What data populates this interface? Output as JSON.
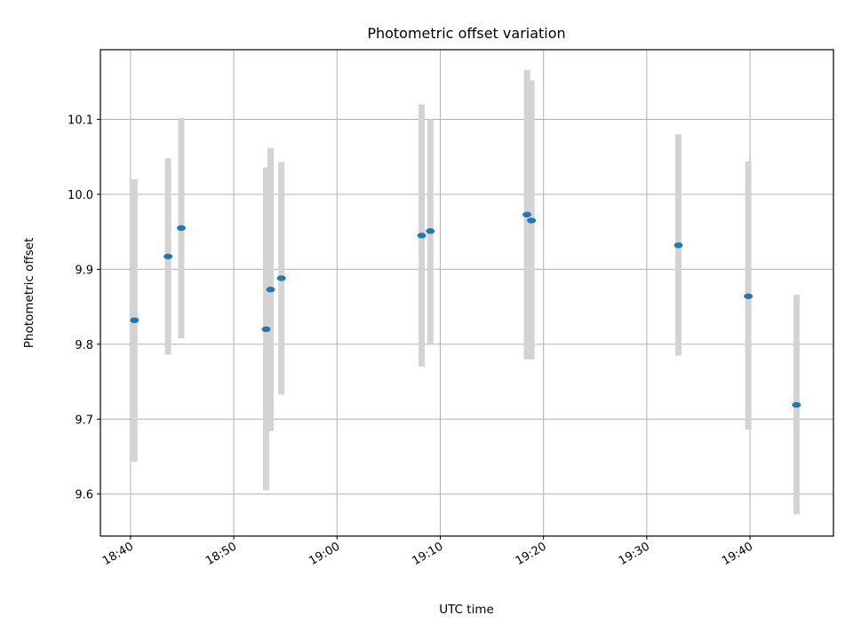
{
  "chart_data": {
    "type": "scatter",
    "title": "Photometric offset variation",
    "xlabel": "UTC time",
    "ylabel": "Photometric offset",
    "x_axis": "time (HH:MM, UTC)",
    "xlim": [
      "18:37:05",
      "19:48:05"
    ],
    "ylim": [
      9.544,
      10.193
    ],
    "xticks": [
      "18:40",
      "18:50",
      "19:00",
      "19:10",
      "19:20",
      "19:30",
      "19:40"
    ],
    "yticks": [
      9.6,
      9.7,
      9.8,
      9.9,
      10.0,
      10.1
    ],
    "grid": true,
    "legend": "none",
    "points": [
      {
        "time": "18:40:23",
        "value": 9.832,
        "err_low": 9.643,
        "err_high": 10.02
      },
      {
        "time": "18:43:38",
        "value": 9.917,
        "err_low": 9.786,
        "err_high": 10.048
      },
      {
        "time": "18:44:55",
        "value": 9.955,
        "err_low": 9.808,
        "err_high": 10.102
      },
      {
        "time": "18:53:08",
        "value": 9.82,
        "err_low": 9.605,
        "err_high": 10.036
      },
      {
        "time": "18:53:34",
        "value": 9.873,
        "err_low": 9.684,
        "err_high": 10.062
      },
      {
        "time": "18:54:37",
        "value": 9.888,
        "err_low": 9.733,
        "err_high": 10.043
      },
      {
        "time": "19:08:12",
        "value": 9.945,
        "err_low": 9.77,
        "err_high": 10.12
      },
      {
        "time": "19:09:02",
        "value": 9.951,
        "err_low": 9.801,
        "err_high": 10.1
      },
      {
        "time": "19:18:24",
        "value": 9.973,
        "err_low": 9.78,
        "err_high": 10.166
      },
      {
        "time": "19:18:50",
        "value": 9.965,
        "err_low": 9.78,
        "err_high": 10.152
      },
      {
        "time": "19:33:04",
        "value": 9.932,
        "err_low": 9.785,
        "err_high": 10.08
      },
      {
        "time": "19:39:50",
        "value": 9.864,
        "err_low": 9.686,
        "err_high": 10.044
      },
      {
        "time": "19:44:30",
        "value": 9.719,
        "err_low": 9.573,
        "err_high": 9.866
      }
    ],
    "colors": {
      "marker": "#1f77b4",
      "errorbar": "#d3d3d3",
      "grid": "#b0b0b0",
      "frame": "#000000"
    }
  }
}
